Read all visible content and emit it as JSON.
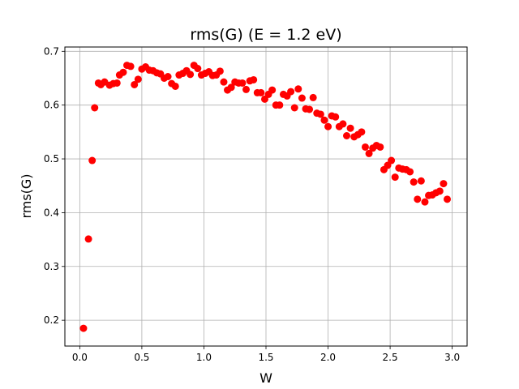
{
  "chart_data": {
    "type": "scatter",
    "title": "rms(G) (E = 1.2 eV)",
    "xlabel": "W",
    "ylabel": "rms(G)",
    "xlim": [
      -0.12,
      3.12
    ],
    "ylim": [
      0.152,
      0.708
    ],
    "xticks": [
      0.0,
      0.5,
      1.0,
      1.5,
      2.0,
      2.5,
      3.0
    ],
    "xtick_labels": [
      "0.0",
      "0.5",
      "1.0",
      "1.5",
      "2.0",
      "2.5",
      "3.0"
    ],
    "yticks": [
      0.2,
      0.3,
      0.4,
      0.5,
      0.6,
      0.7
    ],
    "ytick_labels": [
      "0.2",
      "0.3",
      "0.4",
      "0.5",
      "0.6",
      "0.7"
    ],
    "grid": true,
    "marker_color": "#ff0000",
    "points": [
      [
        0.03,
        0.185
      ],
      [
        0.07,
        0.351
      ],
      [
        0.1,
        0.497
      ],
      [
        0.12,
        0.595
      ],
      [
        0.15,
        0.641
      ],
      [
        0.17,
        0.638
      ],
      [
        0.2,
        0.643
      ],
      [
        0.24,
        0.637
      ],
      [
        0.27,
        0.64
      ],
      [
        0.3,
        0.641
      ],
      [
        0.32,
        0.656
      ],
      [
        0.35,
        0.661
      ],
      [
        0.38,
        0.674
      ],
      [
        0.41,
        0.672
      ],
      [
        0.44,
        0.638
      ],
      [
        0.47,
        0.648
      ],
      [
        0.5,
        0.667
      ],
      [
        0.53,
        0.671
      ],
      [
        0.56,
        0.665
      ],
      [
        0.59,
        0.664
      ],
      [
        0.62,
        0.66
      ],
      [
        0.65,
        0.658
      ],
      [
        0.68,
        0.65
      ],
      [
        0.71,
        0.653
      ],
      [
        0.74,
        0.64
      ],
      [
        0.77,
        0.635
      ],
      [
        0.8,
        0.656
      ],
      [
        0.83,
        0.659
      ],
      [
        0.86,
        0.664
      ],
      [
        0.89,
        0.657
      ],
      [
        0.92,
        0.674
      ],
      [
        0.95,
        0.668
      ],
      [
        0.98,
        0.656
      ],
      [
        1.01,
        0.659
      ],
      [
        1.04,
        0.662
      ],
      [
        1.07,
        0.655
      ],
      [
        1.1,
        0.656
      ],
      [
        1.13,
        0.663
      ],
      [
        1.16,
        0.643
      ],
      [
        1.19,
        0.628
      ],
      [
        1.22,
        0.633
      ],
      [
        1.25,
        0.643
      ],
      [
        1.28,
        0.641
      ],
      [
        1.31,
        0.641
      ],
      [
        1.34,
        0.629
      ],
      [
        1.37,
        0.645
      ],
      [
        1.4,
        0.647
      ],
      [
        1.43,
        0.623
      ],
      [
        1.46,
        0.623
      ],
      [
        1.49,
        0.611
      ],
      [
        1.52,
        0.62
      ],
      [
        1.55,
        0.628
      ],
      [
        1.58,
        0.6
      ],
      [
        1.61,
        0.6
      ],
      [
        1.64,
        0.62
      ],
      [
        1.67,
        0.617
      ],
      [
        1.7,
        0.625
      ],
      [
        1.73,
        0.595
      ],
      [
        1.76,
        0.63
      ],
      [
        1.79,
        0.613
      ],
      [
        1.82,
        0.593
      ],
      [
        1.85,
        0.592
      ],
      [
        1.88,
        0.614
      ],
      [
        1.91,
        0.585
      ],
      [
        1.94,
        0.583
      ],
      [
        1.97,
        0.572
      ],
      [
        2.0,
        0.56
      ],
      [
        2.03,
        0.58
      ],
      [
        2.06,
        0.578
      ],
      [
        2.09,
        0.56
      ],
      [
        2.12,
        0.565
      ],
      [
        2.15,
        0.543
      ],
      [
        2.18,
        0.557
      ],
      [
        2.21,
        0.541
      ],
      [
        2.24,
        0.545
      ],
      [
        2.27,
        0.55
      ],
      [
        2.3,
        0.522
      ],
      [
        2.33,
        0.51
      ],
      [
        2.36,
        0.52
      ],
      [
        2.39,
        0.525
      ],
      [
        2.42,
        0.522
      ],
      [
        2.45,
        0.48
      ],
      [
        2.48,
        0.488
      ],
      [
        2.51,
        0.497
      ],
      [
        2.54,
        0.466
      ],
      [
        2.57,
        0.483
      ],
      [
        2.6,
        0.481
      ],
      [
        2.63,
        0.48
      ],
      [
        2.66,
        0.476
      ],
      [
        2.69,
        0.457
      ],
      [
        2.72,
        0.425
      ],
      [
        2.75,
        0.459
      ],
      [
        2.78,
        0.42
      ],
      [
        2.81,
        0.432
      ],
      [
        2.84,
        0.433
      ],
      [
        2.87,
        0.437
      ],
      [
        2.9,
        0.44
      ],
      [
        2.93,
        0.454
      ],
      [
        2.96,
        0.425
      ]
    ]
  }
}
